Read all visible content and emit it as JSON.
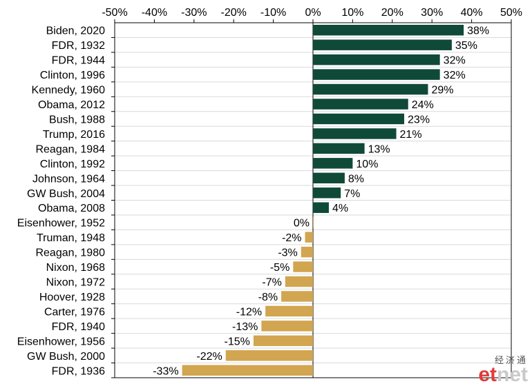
{
  "chart_data": {
    "type": "bar",
    "orientation": "horizontal",
    "categories": [
      "Biden, 2020",
      "FDR, 1932",
      "FDR, 1944",
      "Clinton, 1996",
      "Kennedy, 1960",
      "Obama, 2012",
      "Bush, 1988",
      "Trump, 2016",
      "Reagan, 1984",
      "Clinton, 1992",
      "Johnson, 1964",
      "GW Bush, 2004",
      "Obama, 2008",
      "Eisenhower, 1952",
      "Truman, 1948",
      "Reagan, 1980",
      "Nixon, 1968",
      "Nixon, 1972",
      "Hoover, 1928",
      "Carter, 1976",
      "FDR, 1940",
      "Eisenhower, 1956",
      "GW Bush, 2000",
      "FDR, 1936"
    ],
    "values": [
      38,
      35,
      32,
      32,
      29,
      24,
      23,
      21,
      13,
      10,
      8,
      7,
      4,
      0,
      -2,
      -3,
      -5,
      -7,
      -8,
      -12,
      -13,
      -15,
      -22,
      -33
    ],
    "value_labels": [
      "38%",
      "35%",
      "32%",
      "32%",
      "29%",
      "24%",
      "23%",
      "21%",
      "13%",
      "10%",
      "8%",
      "7%",
      "4%",
      "0%",
      "-2%",
      "-3%",
      "-5%",
      "-7%",
      "-8%",
      "-12%",
      "-13%",
      "-15%",
      "-22%",
      "-33%"
    ],
    "xlim": [
      -50,
      50
    ],
    "xticks": [
      -50,
      -40,
      -30,
      -20,
      -10,
      0,
      10,
      20,
      30,
      40,
      50
    ],
    "xtick_labels": [
      "-50%",
      "-40%",
      "-30%",
      "-20%",
      "-10%",
      "0%",
      "10%",
      "20%",
      "30%",
      "40%",
      "50%"
    ],
    "grid": "horizontal",
    "colors": {
      "positive": "#0f4a38",
      "negative": "#d2a550"
    }
  },
  "watermark": {
    "cn": "经济通",
    "en_e": "et",
    "en_rest": "net"
  }
}
